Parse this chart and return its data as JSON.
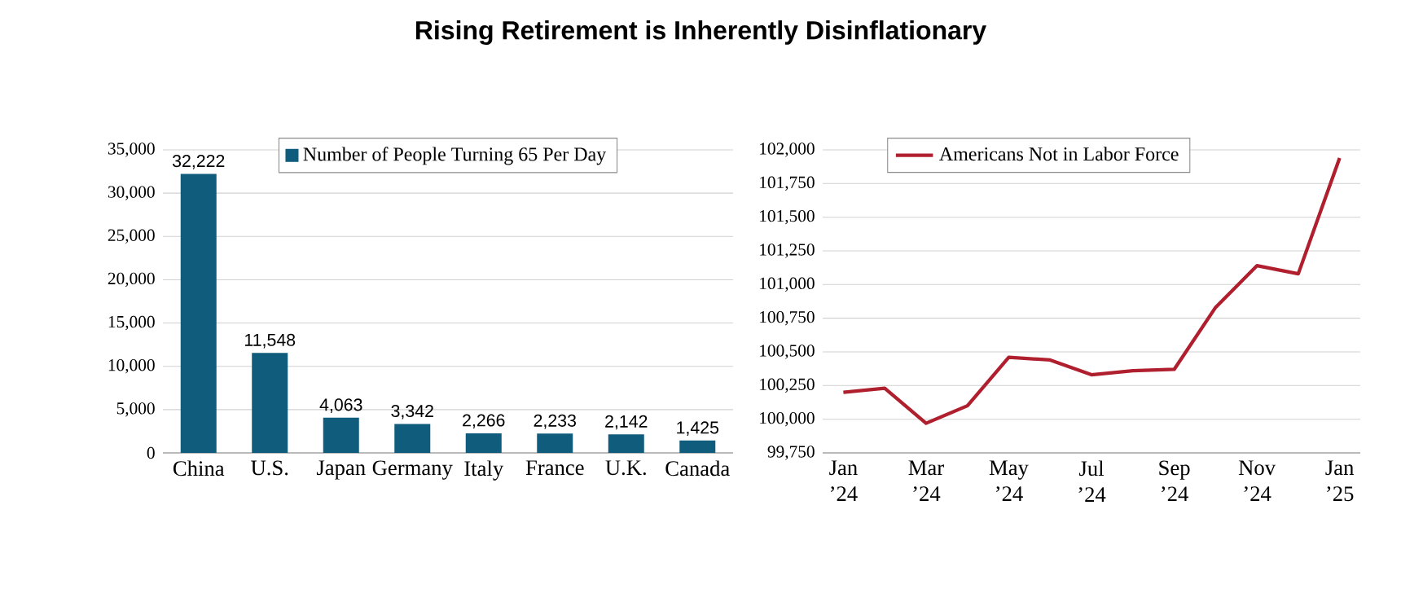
{
  "chart_data": [
    {
      "type": "bar",
      "title": "Rising Retirement is Inherently Disinflationary",
      "categories": [
        "China",
        "U.S.",
        "Japan",
        "Germany",
        "Italy",
        "France",
        "U.K.",
        "Canada"
      ],
      "series": [
        {
          "name": "Number of People Turning 65 Per Day",
          "color": "#0f5c7c",
          "values": [
            32222,
            11548,
            4063,
            3342,
            2266,
            2233,
            2142,
            1425
          ],
          "value_labels": [
            "32,222",
            "11,548",
            "4,063",
            "3,342",
            "2,266",
            "2,233",
            "2,142",
            "1,425"
          ]
        }
      ],
      "ylim": [
        0,
        35000
      ],
      "yticks": [
        0,
        {
          "value": 5000,
          "label": "5,000"
        },
        {
          "value": 10000,
          "label": "10,000"
        },
        {
          "value": 15000,
          "label": "15,000"
        },
        {
          "value": 20000,
          "label": "20,000"
        },
        {
          "value": 25000,
          "label": "25,000"
        },
        {
          "value": 30000,
          "label": "30,000"
        },
        {
          "value": 35000,
          "label": "35,000"
        }
      ],
      "grid": "y",
      "legend": "top"
    },
    {
      "type": "line",
      "x": [
        "2024-01",
        "2024-02",
        "2024-03",
        "2024-04",
        "2024-05",
        "2024-06",
        "2024-07",
        "2024-08",
        "2024-09",
        "2024-10",
        "2024-11",
        "2024-12",
        "2025-01"
      ],
      "series": [
        {
          "name": "Americans Not in Labor Force",
          "color": "#b01f2e",
          "values": [
            100200,
            100230,
            99970,
            100100,
            100460,
            100440,
            100330,
            100360,
            100370,
            100830,
            101140,
            101080,
            101940
          ]
        }
      ],
      "xlim": [
        "2023-12-16",
        "2025-01-16"
      ],
      "xticks": [
        {
          "value": "2024-01",
          "label": "Jan ’24"
        },
        {
          "value": "2024-03",
          "label": "Mar ’24"
        },
        {
          "value": "2024-05",
          "label": "May ’24"
        },
        {
          "value": "2024-07",
          "label": "Jul ’24"
        },
        {
          "value": "2024-09",
          "label": "Sep ’24"
        },
        {
          "value": "2024-11",
          "label": "Nov ’24"
        },
        {
          "value": "2025-01",
          "label": "Jan ’25"
        }
      ],
      "ylim": [
        99750,
        102000
      ],
      "yticks": [
        {
          "value": 99750,
          "label": "99,750"
        },
        {
          "value": 100000,
          "label": "100,000"
        },
        {
          "value": 100250,
          "label": "100,250"
        },
        {
          "value": 100500,
          "label": "100,500"
        },
        {
          "value": 100750,
          "label": "100,750"
        },
        {
          "value": 101000,
          "label": "101,000"
        },
        {
          "value": 101250,
          "label": "101,250"
        },
        {
          "value": 101500,
          "label": "101,500"
        },
        {
          "value": 101750,
          "label": "101,750"
        },
        {
          "value": 102000,
          "label": "102,000"
        }
      ],
      "grid": "y",
      "legend": "top left"
    }
  ]
}
